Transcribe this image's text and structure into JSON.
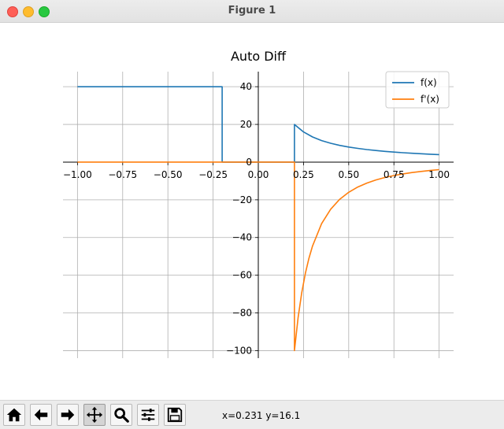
{
  "window": {
    "title": "Figure 1"
  },
  "toolbar": {
    "buttons": [
      {
        "name": "home-icon",
        "active": false
      },
      {
        "name": "back-icon",
        "active": false
      },
      {
        "name": "forward-icon",
        "active": false
      },
      {
        "name": "pan-icon",
        "active": true
      },
      {
        "name": "zoom-icon",
        "active": false
      },
      {
        "name": "configure-subplots-icon",
        "active": false
      },
      {
        "name": "save-icon",
        "active": false
      }
    ],
    "coordinates": "x=0.231 y=16.1"
  },
  "chart_data": {
    "type": "line",
    "title": "Auto Diff",
    "xlabel": "",
    "ylabel": "",
    "xlim": [
      -1.08,
      1.08
    ],
    "ylim": [
      -104,
      48
    ],
    "x_ticks": [
      -1.0,
      -0.75,
      -0.5,
      -0.25,
      0.0,
      0.25,
      0.5,
      0.75,
      1.0
    ],
    "x_tick_labels": [
      "−1.00",
      "−0.75",
      "−0.50",
      "−0.25",
      "0.00",
      "0.25",
      "0.50",
      "0.75",
      "1.00"
    ],
    "y_ticks": [
      -100,
      -80,
      -60,
      -40,
      -20,
      0,
      20,
      40
    ],
    "y_tick_labels": [
      "−100",
      "−80",
      "−60",
      "−40",
      "−20",
      "0",
      "20",
      "40"
    ],
    "grid": true,
    "legend_position": "upper-right",
    "series": [
      {
        "name": "f(x)",
        "color": "#1f77b4",
        "points": [
          [
            -1.0,
            40
          ],
          [
            -0.2,
            40
          ],
          [
            -0.2,
            0
          ],
          [
            0.2,
            0
          ],
          [
            0.2,
            20
          ],
          [
            0.25,
            16.0
          ],
          [
            0.3,
            13.33
          ],
          [
            0.35,
            11.43
          ],
          [
            0.4,
            10.0
          ],
          [
            0.45,
            8.89
          ],
          [
            0.5,
            8.0
          ],
          [
            0.55,
            7.27
          ],
          [
            0.6,
            6.67
          ],
          [
            0.65,
            6.15
          ],
          [
            0.7,
            5.71
          ],
          [
            0.75,
            5.33
          ],
          [
            0.8,
            5.0
          ],
          [
            0.85,
            4.71
          ],
          [
            0.9,
            4.44
          ],
          [
            0.95,
            4.21
          ],
          [
            1.0,
            4.0
          ]
        ]
      },
      {
        "name": "f'(x)",
        "color": "#ff7f0e",
        "points": [
          [
            -1.0,
            0
          ],
          [
            0.2,
            0
          ],
          [
            0.2,
            -100
          ],
          [
            0.22,
            -82.64
          ],
          [
            0.24,
            -69.44
          ],
          [
            0.26,
            -59.17
          ],
          [
            0.28,
            -51.02
          ],
          [
            0.3,
            -44.44
          ],
          [
            0.35,
            -32.65
          ],
          [
            0.4,
            -25.0
          ],
          [
            0.45,
            -19.75
          ],
          [
            0.5,
            -16.0
          ],
          [
            0.55,
            -13.22
          ],
          [
            0.6,
            -11.11
          ],
          [
            0.65,
            -9.47
          ],
          [
            0.7,
            -8.16
          ],
          [
            0.75,
            -7.11
          ],
          [
            0.8,
            -6.25
          ],
          [
            0.85,
            -5.54
          ],
          [
            0.9,
            -4.94
          ],
          [
            0.95,
            -4.43
          ],
          [
            1.0,
            -4.0
          ]
        ]
      }
    ]
  }
}
